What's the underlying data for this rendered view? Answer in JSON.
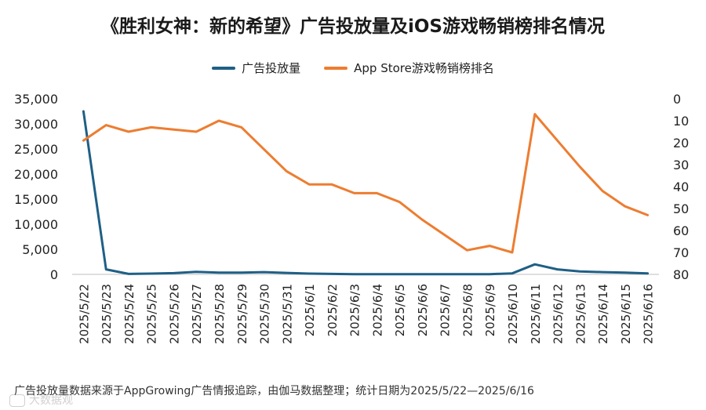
{
  "title": "《胜利女神：新的希望》广告投放量及iOS游戏畅销榜排名情况",
  "footer": "广告投放量数据来源于AppGrowing广告情报追踪，由伽马数据整理；统计日期为2025/5/22—2025/6/16",
  "watermark": "大数据观",
  "chart_data": {
    "type": "line",
    "x": [
      "2025/5/22",
      "2025/5/23",
      "2025/5/24",
      "2025/5/25",
      "2025/5/26",
      "2025/5/27",
      "2025/5/28",
      "2025/5/29",
      "2025/5/30",
      "2025/5/31",
      "2025/6/1",
      "2025/6/2",
      "2025/6/3",
      "2025/6/4",
      "2025/6/5",
      "2025/6/6",
      "2025/6/7",
      "2025/6/8",
      "2025/6/9",
      "2025/6/10",
      "2025/6/11",
      "2025/6/12",
      "2025/6/13",
      "2025/6/14",
      "2025/6/15",
      "2025/6/16"
    ],
    "series": [
      {
        "name": "广告投放量",
        "axis": "left",
        "color": "#1f5f86",
        "values": [
          32500,
          1000,
          100,
          150,
          250,
          500,
          350,
          350,
          450,
          300,
          150,
          100,
          50,
          50,
          50,
          50,
          50,
          50,
          50,
          200,
          2000,
          1000,
          600,
          450,
          350,
          200
        ]
      },
      {
        "name": "App Store游戏畅销榜排名",
        "axis": "right",
        "color": "#ed7d31",
        "values": [
          19,
          12,
          15,
          13,
          14,
          15,
          10,
          13,
          23,
          33,
          39,
          39,
          43,
          43,
          47,
          55,
          62,
          69,
          67,
          70,
          7,
          19,
          31,
          42,
          49,
          53
        ]
      }
    ],
    "left_axis": {
      "min": 0,
      "max": 35000,
      "ticks": [
        "0",
        "5,000",
        "10,000",
        "15,000",
        "20,000",
        "25,000",
        "30,000",
        "35,000"
      ]
    },
    "right_axis": {
      "min": 0,
      "max": 80,
      "inverted": true,
      "ticks": [
        "0",
        "10",
        "20",
        "30",
        "40",
        "50",
        "60",
        "70",
        "80"
      ]
    },
    "grid": false,
    "legend_position": "top"
  }
}
